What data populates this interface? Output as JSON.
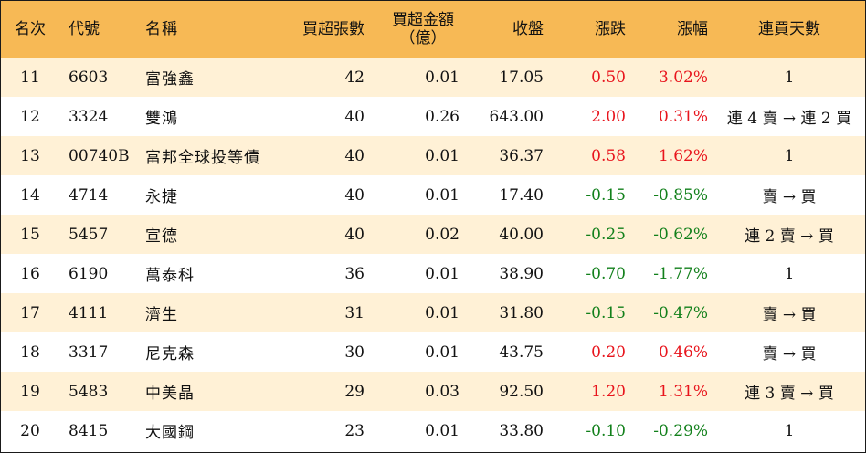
{
  "table": {
    "headers": {
      "rank": "名次",
      "code": "代號",
      "name": "名稱",
      "net_buy_lots": "買超張數",
      "net_buy_amount_line1": "買超金額",
      "net_buy_amount_line2": "（億）",
      "close": "收盤",
      "change": "漲跌",
      "change_pct": "漲幅",
      "consecutive_days": "連買天數"
    },
    "rows": [
      {
        "rank": "11",
        "code": "6603",
        "name": "富強鑫",
        "lots": "42",
        "amount": "0.01",
        "close": "17.05",
        "change": "0.50",
        "pct": "3.02%",
        "days": "1",
        "dir": "up"
      },
      {
        "rank": "12",
        "code": "3324",
        "name": "雙鴻",
        "lots": "40",
        "amount": "0.26",
        "close": "643.00",
        "change": "2.00",
        "pct": "0.31%",
        "days": "連 4 賣 → 連 2 買",
        "dir": "up"
      },
      {
        "rank": "13",
        "code": "00740B",
        "name": "富邦全球投等債",
        "lots": "40",
        "amount": "0.01",
        "close": "36.37",
        "change": "0.58",
        "pct": "1.62%",
        "days": "1",
        "dir": "up"
      },
      {
        "rank": "14",
        "code": "4714",
        "name": "永捷",
        "lots": "40",
        "amount": "0.01",
        "close": "17.40",
        "change": "-0.15",
        "pct": "-0.85%",
        "days": "賣 → 買",
        "dir": "down"
      },
      {
        "rank": "15",
        "code": "5457",
        "name": "宣德",
        "lots": "40",
        "amount": "0.02",
        "close": "40.00",
        "change": "-0.25",
        "pct": "-0.62%",
        "days": "連 2 賣 → 買",
        "dir": "down"
      },
      {
        "rank": "16",
        "code": "6190",
        "name": "萬泰科",
        "lots": "36",
        "amount": "0.01",
        "close": "38.90",
        "change": "-0.70",
        "pct": "-1.77%",
        "days": "1",
        "dir": "down"
      },
      {
        "rank": "17",
        "code": "4111",
        "name": "濟生",
        "lots": "31",
        "amount": "0.01",
        "close": "31.80",
        "change": "-0.15",
        "pct": "-0.47%",
        "days": "賣 → 買",
        "dir": "down"
      },
      {
        "rank": "18",
        "code": "3317",
        "name": "尼克森",
        "lots": "30",
        "amount": "0.01",
        "close": "43.75",
        "change": "0.20",
        "pct": "0.46%",
        "days": "賣 → 買",
        "dir": "up"
      },
      {
        "rank": "19",
        "code": "5483",
        "name": "中美晶",
        "lots": "29",
        "amount": "0.03",
        "close": "92.50",
        "change": "1.20",
        "pct": "1.31%",
        "days": "連 3 賣 → 買",
        "dir": "up"
      },
      {
        "rank": "20",
        "code": "8415",
        "name": "大國鋼",
        "lots": "23",
        "amount": "0.01",
        "close": "33.80",
        "change": "-0.10",
        "pct": "-0.29%",
        "days": "1",
        "dir": "down"
      }
    ]
  },
  "colors": {
    "header_bg": "#f7b955",
    "stripe_bg": "#fff1d6",
    "up": "#e8141c",
    "down": "#12801b"
  }
}
